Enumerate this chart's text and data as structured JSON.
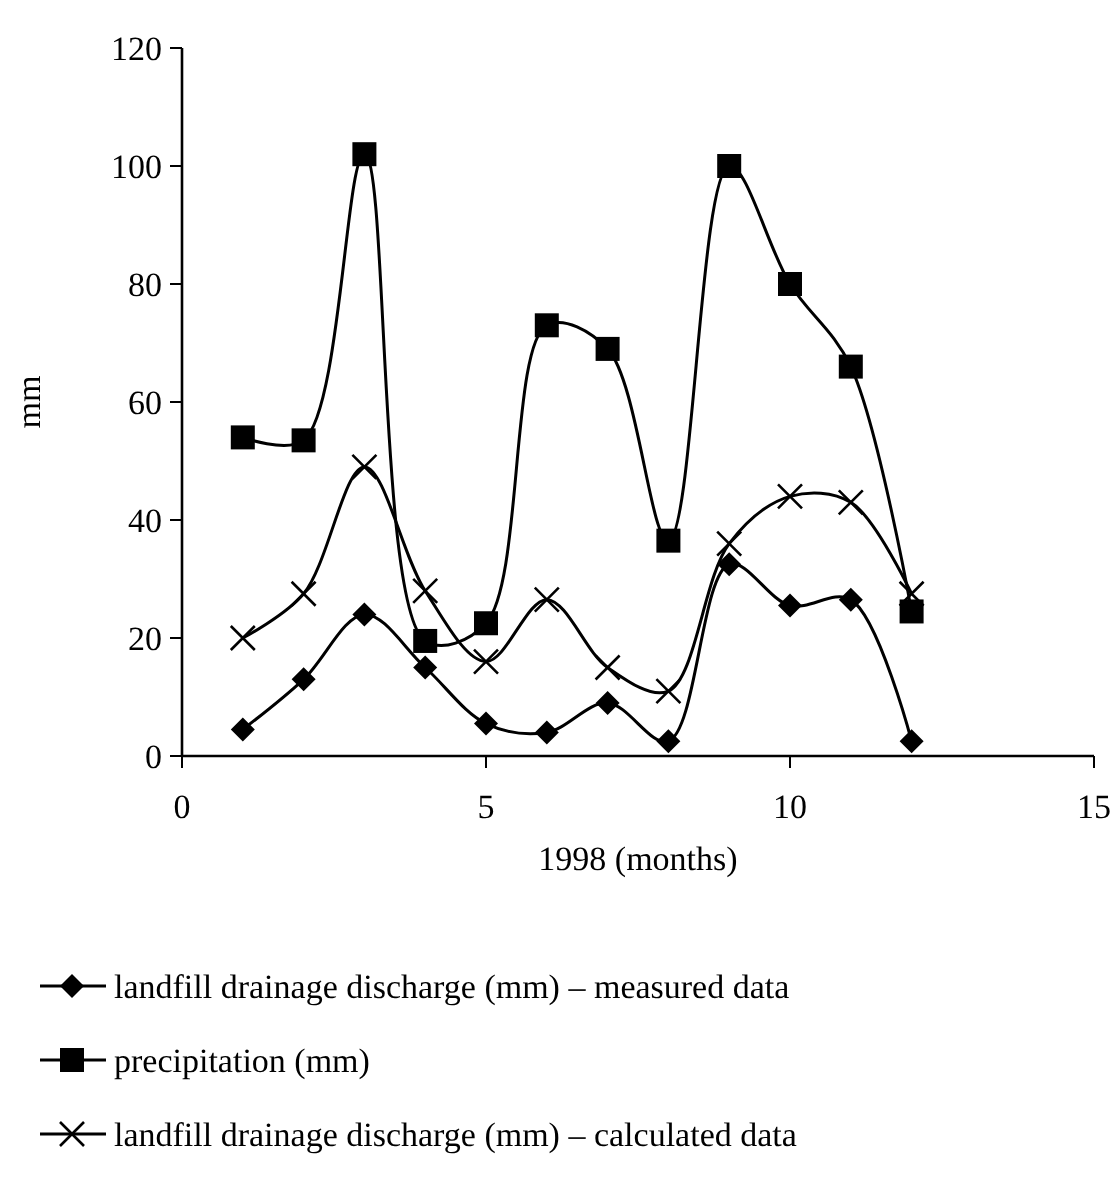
{
  "chart_data": {
    "type": "line",
    "xlabel": "1998  (months)",
    "ylabel": "mm",
    "x": [
      1,
      2,
      3,
      4,
      5,
      6,
      7,
      8,
      9,
      10,
      11,
      12
    ],
    "series": [
      {
        "name": "landfill drainage discharge (mm) – measured data",
        "color": "#000000",
        "marker": "diamond",
        "values": [
          4.5,
          13,
          24,
          15,
          5.5,
          4,
          9,
          2.5,
          32.5,
          25.5,
          26.5,
          2.5
        ]
      },
      {
        "name": "precipitation (mm)",
        "color": "#000000",
        "marker": "square",
        "values": [
          54,
          53.5,
          102,
          19.5,
          22.5,
          73,
          69,
          36.5,
          100,
          80,
          66,
          24.5
        ]
      },
      {
        "name": "landfill drainage discharge (mm) – calculated data",
        "color": "#000000",
        "marker": "cross",
        "values": [
          20,
          27.5,
          49,
          28,
          16,
          26.5,
          15,
          11,
          36,
          44,
          43,
          27.5
        ]
      }
    ],
    "xlim": [
      0,
      15
    ],
    "xticks": [
      0,
      5,
      10,
      15
    ],
    "ylim": [
      0,
      120
    ],
    "yticks": [
      0,
      20,
      40,
      60,
      80,
      100,
      120
    ],
    "grid": false,
    "legend": "bottom",
    "line_style": "solid"
  }
}
